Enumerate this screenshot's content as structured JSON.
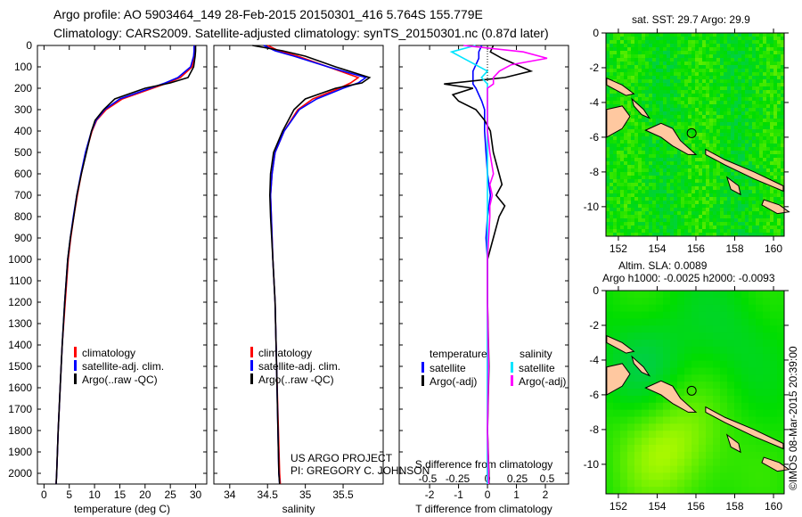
{
  "header": {
    "line1": "Argo profile: AO 5903464_149 28-Feb-2015 20150301_416 5.764S 155.779E",
    "line2": "Climatology: CARS2009. Satellite-adjusted climatology: synTS_20150301.nc (0.87d later)"
  },
  "credit": {
    "project": "US ARGO PROJECT",
    "pi": "PI: GREGORY C. JOHNSON",
    "imos": "©IMOS 08-Mar-2015 20:39:00"
  },
  "colors": {
    "clim": "#ff0000",
    "sat": "#0000ff",
    "argo": "#000000",
    "sal_sat": "#00e5ff",
    "sal_argo": "#ff00ff"
  },
  "chart_data": [
    {
      "type": "line",
      "name": "temperature",
      "xlabel": "temperature (deg C)",
      "xlim": [
        -1.3,
        32.2
      ],
      "ylim": [
        2050,
        0
      ],
      "xticks": [
        0,
        5,
        10,
        15,
        20,
        25,
        30
      ],
      "yticks": [
        0,
        100,
        200,
        300,
        400,
        500,
        600,
        700,
        800,
        900,
        1000,
        1100,
        1200,
        1300,
        1400,
        1500,
        1600,
        1700,
        1800,
        1900,
        2000
      ],
      "legend": [
        "climatology",
        "satellite-adj. clim.",
        "Argo(..raw -QC)"
      ],
      "depth": [
        0,
        25,
        50,
        100,
        150,
        175,
        200,
        250,
        300,
        350,
        400,
        500,
        600,
        700,
        800,
        900,
        1000,
        1200,
        1400,
        1600,
        1800,
        2000,
        2050
      ],
      "series": [
        {
          "name": "climatology",
          "values": [
            29.9,
            29.9,
            29.8,
            29.3,
            27.0,
            24.5,
            21.5,
            15.5,
            12.3,
            10.4,
            9.5,
            8.3,
            7.4,
            6.6,
            5.9,
            5.3,
            4.8,
            4.2,
            3.6,
            3.2,
            2.8,
            2.5,
            2.4
          ]
        },
        {
          "name": "satellite-adj. clim.",
          "values": [
            29.7,
            29.7,
            29.6,
            29.0,
            26.5,
            24.0,
            21.0,
            15.0,
            12.0,
            10.3,
            9.4,
            8.2,
            7.3,
            6.5,
            5.8,
            5.2,
            4.7,
            4.1,
            3.6,
            3.2,
            2.8,
            2.5,
            2.4
          ]
        },
        {
          "name": "Argo(..raw -QC)",
          "values": [
            30.0,
            30.0,
            29.9,
            29.6,
            28.5,
            25.0,
            20.0,
            14.0,
            11.8,
            10.1,
            9.4,
            8.4,
            7.4,
            6.5,
            5.9,
            5.2,
            4.7,
            4.1,
            3.6,
            3.2,
            2.8,
            2.5,
            2.4
          ]
        }
      ]
    },
    {
      "type": "line",
      "name": "salinity",
      "xlabel": "salinity",
      "xlim": [
        33.79,
        36.03
      ],
      "ylim": [
        2050,
        0
      ],
      "xticks": [
        34,
        34.5,
        35,
        35.5
      ],
      "legend": [
        "climatology",
        "satellite-adj. clim.",
        "Argo(..raw -QC)"
      ],
      "depth": [
        0,
        25,
        50,
        100,
        150,
        175,
        200,
        250,
        300,
        400,
        500,
        600,
        700,
        800,
        1000,
        1200,
        1500,
        2000,
        2050
      ],
      "series": [
        {
          "name": "climatology",
          "values": [
            34.5,
            34.65,
            34.9,
            35.3,
            35.7,
            35.6,
            35.45,
            35.1,
            34.9,
            34.72,
            34.6,
            34.56,
            34.54,
            34.55,
            34.57,
            34.6,
            34.62,
            34.66,
            34.67
          ]
        },
        {
          "name": "satellite-adj. clim.",
          "values": [
            34.45,
            34.6,
            34.85,
            35.3,
            35.8,
            35.7,
            35.5,
            35.15,
            34.92,
            34.72,
            34.6,
            34.56,
            34.54,
            34.55,
            34.57,
            34.6,
            34.62,
            34.65,
            34.66
          ]
        },
        {
          "name": "Argo(..raw -QC)",
          "values": [
            34.3,
            34.7,
            35.0,
            35.4,
            35.85,
            35.75,
            35.4,
            35.0,
            34.85,
            34.7,
            34.58,
            34.54,
            34.53,
            34.54,
            34.57,
            34.6,
            34.62,
            34.65,
            34.66
          ]
        }
      ]
    },
    {
      "type": "line",
      "name": "difference",
      "xlabel": "T difference from climatology",
      "x2label": "S difference from climatology",
      "xlim": [
        -3.05,
        2.8
      ],
      "ylim": [
        2050,
        0
      ],
      "xticks": [
        -2,
        -1,
        0,
        1,
        2
      ],
      "x2ticks": [
        -0.5,
        -0.25,
        0,
        0.25,
        0.5
      ],
      "legend": {
        "temperature": "temperature",
        "salinity": "salinity",
        "sat": "satellite",
        "argo": "Argo(-adj)"
      },
      "depth": [
        0,
        30,
        60,
        90,
        120,
        150,
        180,
        200,
        230,
        260,
        300,
        350,
        400,
        500,
        600,
        650,
        700,
        750,
        800,
        900,
        1000,
        1200,
        1500,
        1800,
        2000,
        2050
      ],
      "series": [
        {
          "name": "T satellite",
          "values": [
            -0.2,
            -0.3,
            -0.3,
            -0.4,
            -0.5,
            -0.5,
            -0.5,
            -0.4,
            -0.3,
            -0.2,
            -0.1,
            -0.1,
            -0.1,
            -0.05,
            0,
            0.05,
            0.1,
            0.05,
            0,
            -0.05,
            0,
            0,
            0,
            0,
            0,
            0
          ]
        },
        {
          "name": "T Argo(-adj)",
          "values": [
            0.2,
            0.1,
            0.5,
            1.0,
            1.5,
            0.6,
            -1.5,
            -0.5,
            -1.2,
            -1.0,
            -0.4,
            -0.1,
            0.1,
            0.2,
            0.4,
            0.5,
            0.3,
            0.6,
            0.4,
            0.2,
            0,
            0,
            0.05,
            0,
            0.05,
            0.05
          ]
        },
        {
          "name": "S satellite",
          "values": [
            -0.1,
            -0.3,
            -0.2,
            -0.1,
            0,
            -0.05,
            0,
            0,
            0,
            0,
            0,
            0,
            0,
            0,
            0,
            0,
            0,
            0,
            0,
            0,
            0,
            0,
            0,
            0,
            0,
            0
          ]
        },
        {
          "name": "S Argo(-adj)",
          "values": [
            -0.2,
            0.3,
            0.5,
            0.2,
            0.1,
            0.05,
            0.05,
            0,
            0,
            0,
            0,
            0,
            0,
            0.02,
            0.05,
            0.02,
            0.04,
            0.02,
            0.02,
            0.01,
            0,
            0,
            0.01,
            0,
            0.01,
            0.01
          ]
        }
      ]
    }
  ],
  "maps": [
    {
      "title": "sat. SST: 29.7  Argo: 29.9",
      "kind": "sst"
    },
    {
      "title": "Altim. SLA: 0.0089",
      "title2": "Argo h1000: -0.0025 h2000: -0.0093",
      "kind": "sla"
    }
  ],
  "map_axes": {
    "lon_ticks": [
      152,
      154,
      156,
      158,
      160
    ],
    "lat_ticks": [
      0,
      -2,
      -4,
      -6,
      -8,
      -10
    ],
    "lonlim": [
      151.36,
      160.55
    ],
    "latlim": [
      0,
      -11.7
    ],
    "float": {
      "lon": 155.779,
      "lat": -5.764
    }
  }
}
